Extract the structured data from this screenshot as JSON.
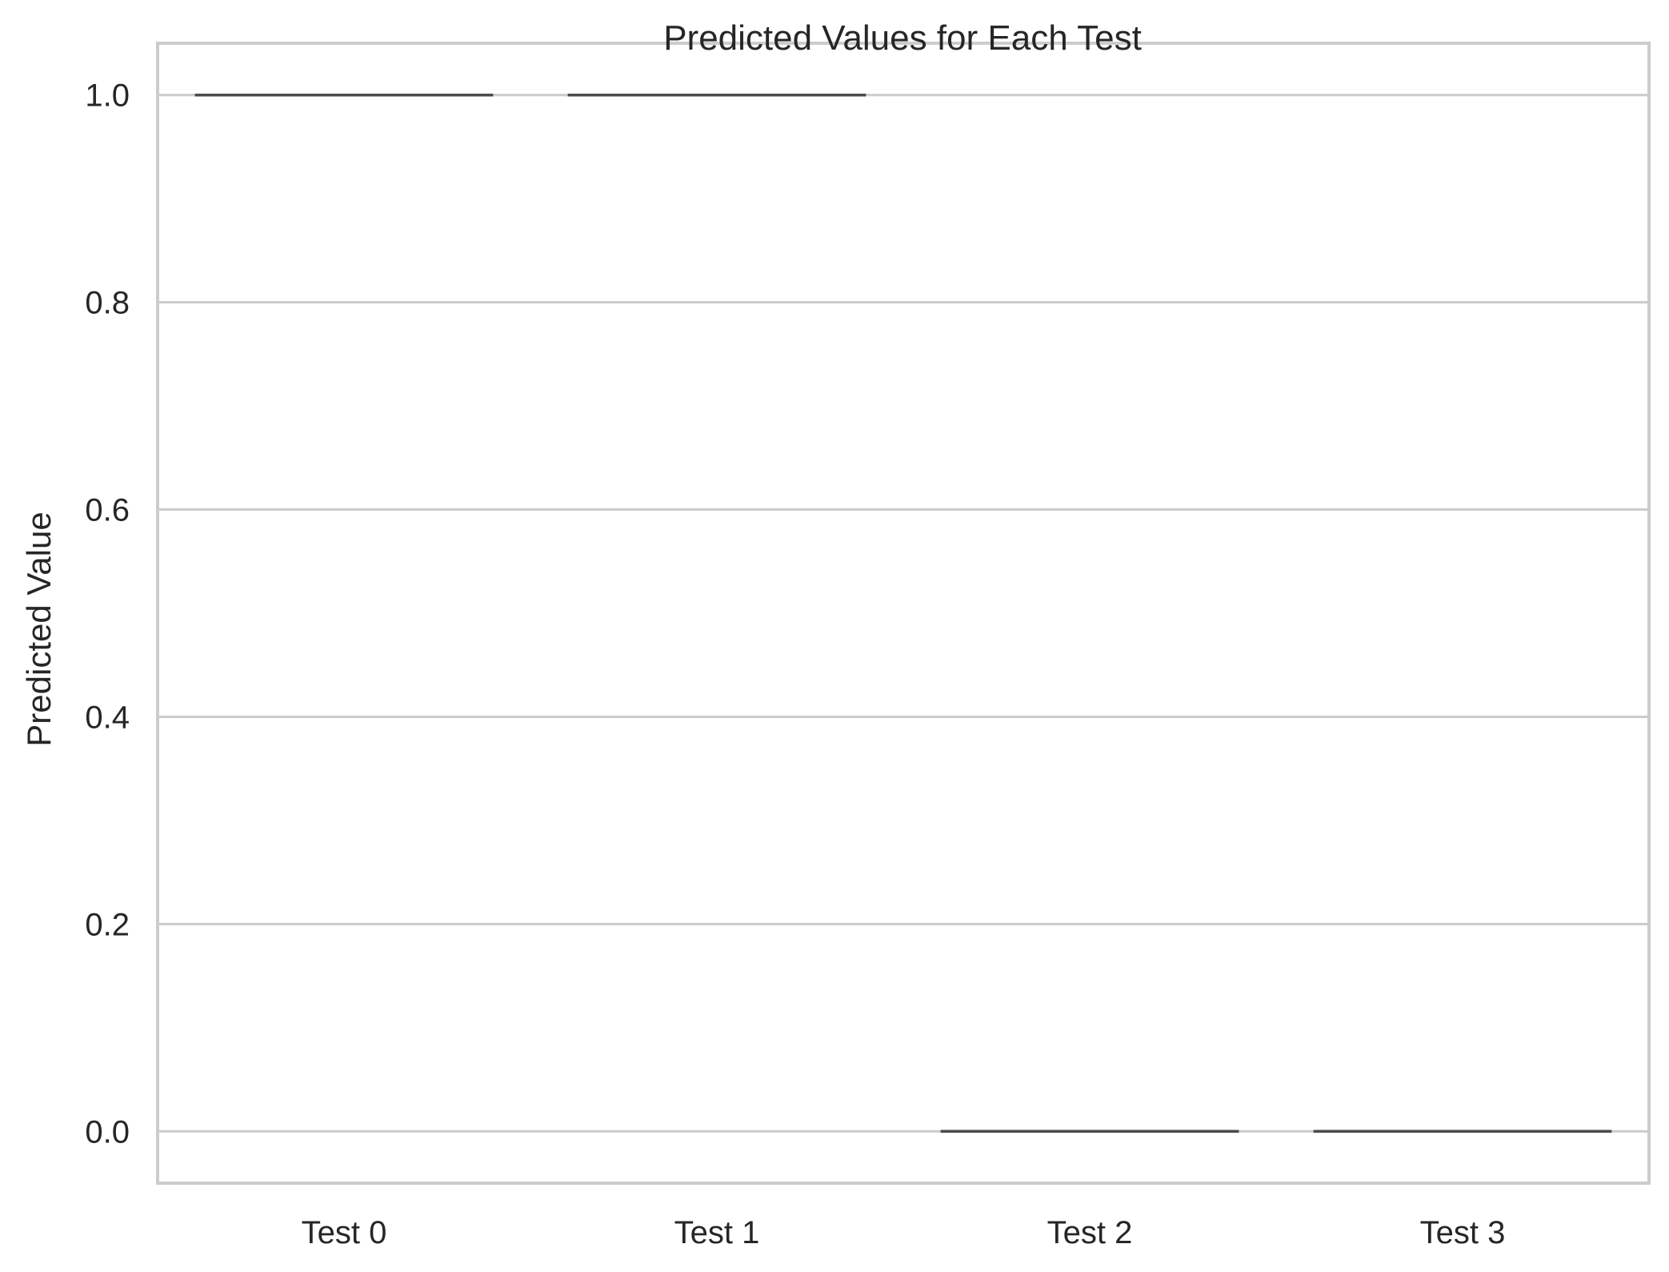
{
  "chart_data": {
    "type": "box",
    "title": "Predicted Values for Each Test",
    "xlabel": "",
    "ylabel": "Predicted Value",
    "categories": [
      "Test 0",
      "Test 1",
      "Test 2",
      "Test 3"
    ],
    "values": [
      1.0,
      1.0,
      0.0,
      0.0
    ],
    "ylim": [
      -0.05,
      1.05
    ],
    "yticks": [
      0.0,
      0.2,
      0.4,
      0.6,
      0.8,
      1.0
    ],
    "ytick_labels": [
      "0.0",
      "0.2",
      "0.4",
      "0.6",
      "0.8",
      "1.0"
    ],
    "grid": "horizontal",
    "colors": {
      "grid": "#cccccc",
      "mark": "#4a4a4a",
      "text": "#262626",
      "background": "#ffffff"
    }
  }
}
